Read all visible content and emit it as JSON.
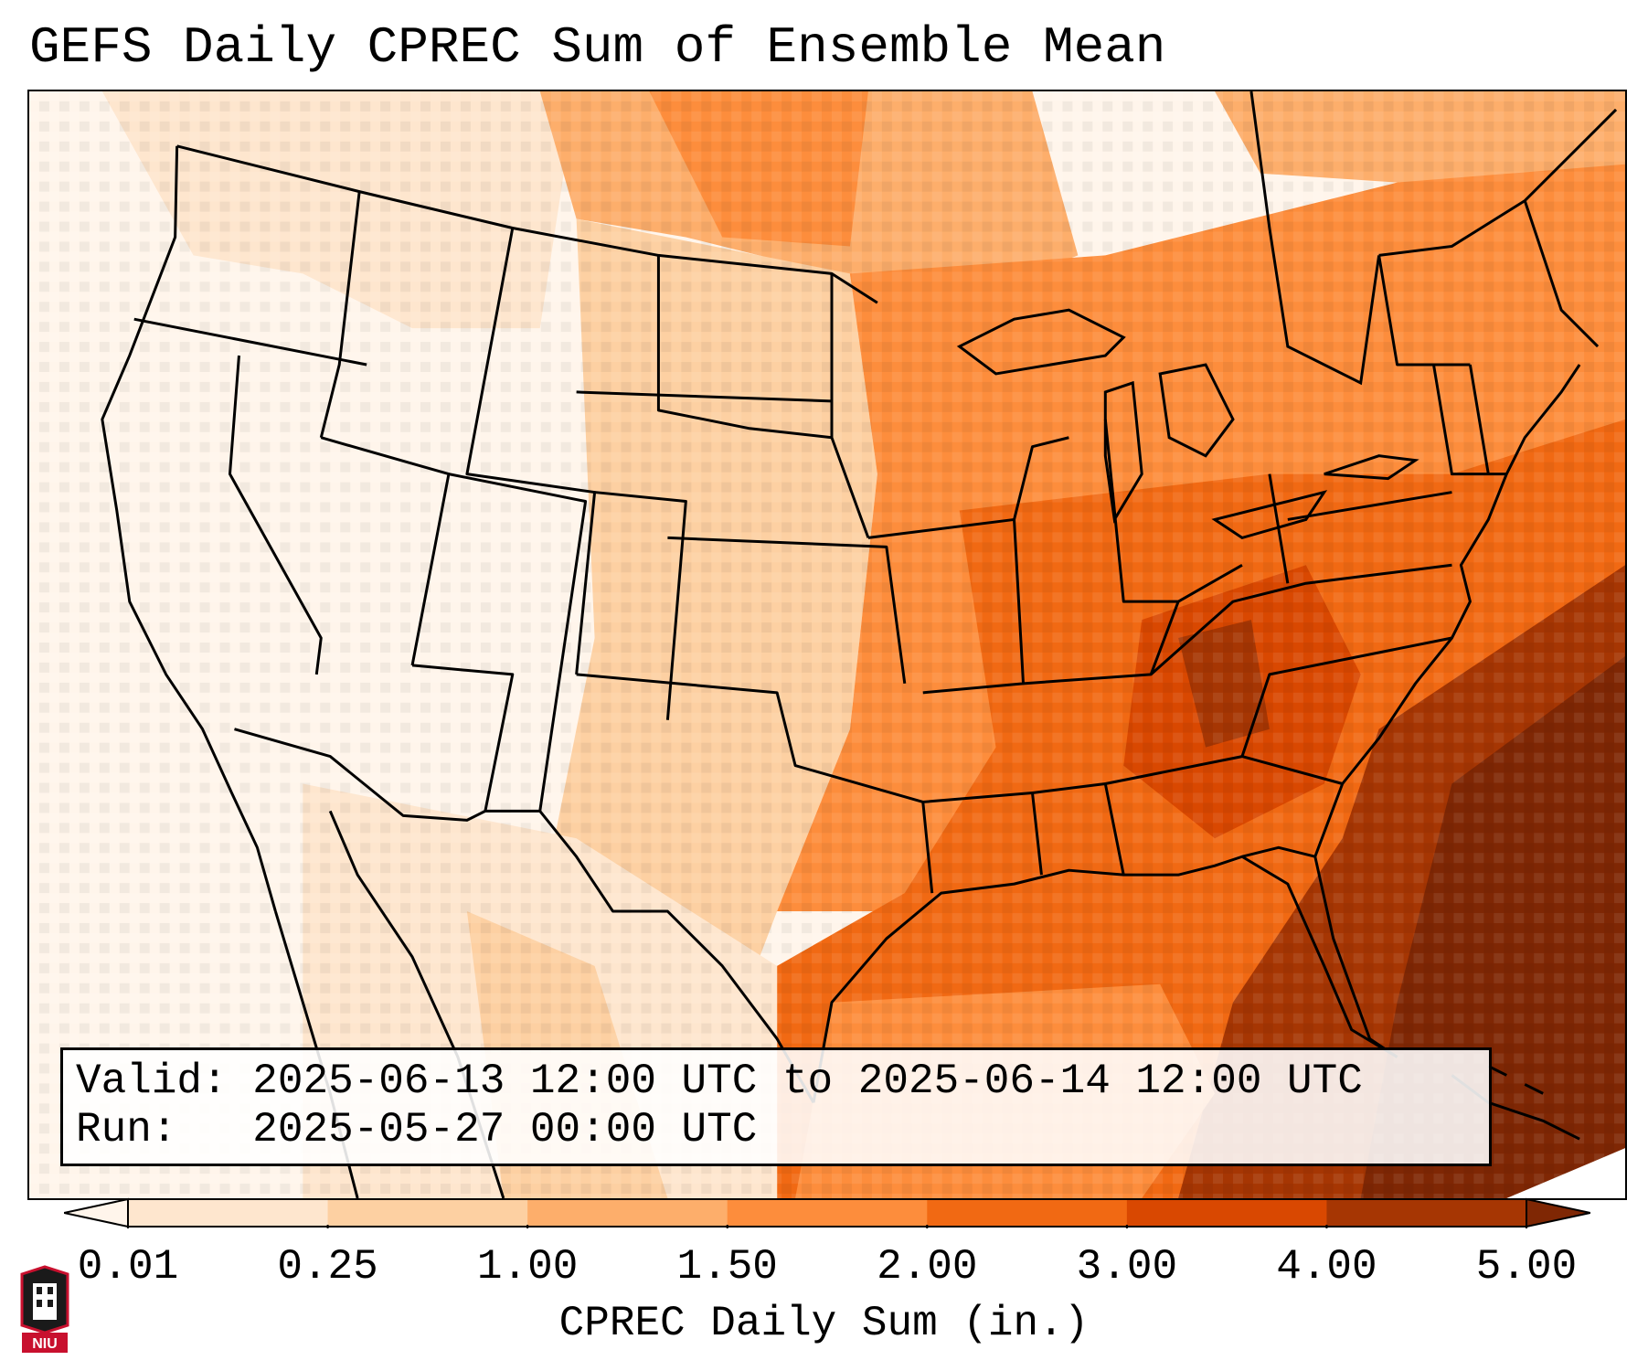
{
  "title": "GEFS Daily CPREC Sum of Ensemble Mean",
  "info": {
    "valid_label": "Valid:",
    "valid_value": "2025-06-13 12:00 UTC to 2025-06-14 12:00 UTC",
    "run_label": "Run:",
    "run_value": "2025-05-27 00:00 UTC"
  },
  "colorbar": {
    "label": "CPREC Daily Sum (in.)",
    "ticks": [
      "0.01",
      "0.25",
      "1.00",
      "1.50",
      "2.00",
      "3.00",
      "4.00",
      "5.00"
    ],
    "colors": [
      "#fff5eb",
      "#fee6ce",
      "#fdd0a2",
      "#fdae6b",
      "#fd8d3c",
      "#f16913",
      "#d94801",
      "#a63603",
      "#7f2704"
    ],
    "extend": "both"
  },
  "logo": {
    "text": "NIU"
  },
  "map": {
    "projection": "lambert-conformal-conus",
    "field": "CPREC daily sum, ensemble mean",
    "pattern": "Dry (0.01–1.00 in.) across the western US and Great Plains; 1.50–3.00 in. across the Midwest, Great Lakes and Northeast; 3.00–5.00+ in. across the Tennessee Valley, Southeast and western Atlantic."
  }
}
